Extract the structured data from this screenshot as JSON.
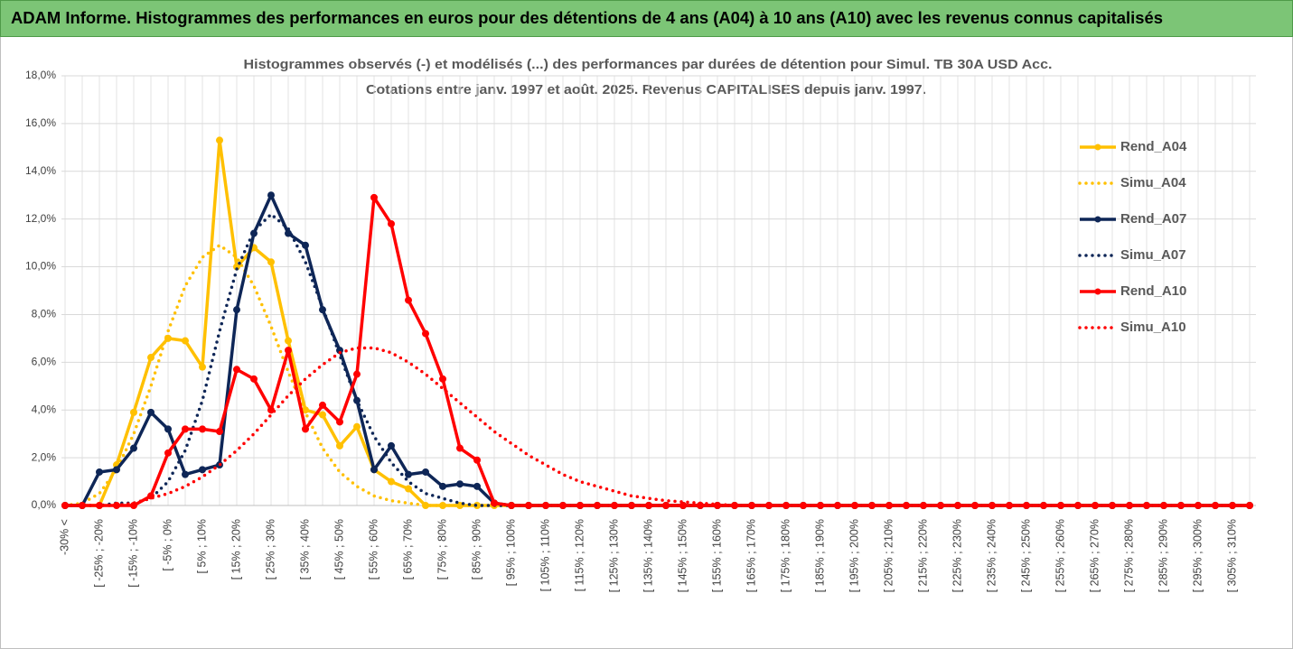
{
  "chart_data": {
    "type": "line",
    "title": "ADAM Informe. Histogrammes des performances en euros pour des détentions de 4 ans (A04) à 10 ans (A10) avec les revenus connus capitalisés",
    "subtitle": [
      "Histogrammes observés (-) et modélisés (...) des performances par durées de détention pour Simul. TB 30A USD Acc.",
      "Cotations entre janv. 1997 et août. 2025. Revenus CAPITALISES depuis janv. 1997."
    ],
    "categories": [
      "-30% <",
      null,
      "[ -25% ; -20%",
      null,
      "[ -15% ; -10%",
      null,
      "[ -5% ; 0%",
      null,
      "[ 5% ; 10%",
      null,
      "[ 15% ; 20%",
      null,
      "[ 25% ; 30%",
      null,
      "[ 35% ; 40%",
      null,
      "[ 45% ; 50%",
      null,
      "[ 55% ; 60%",
      null,
      "[ 65% ; 70%",
      null,
      "[ 75% ; 80%",
      null,
      "[ 85% ; 90%",
      null,
      "[ 95% ; 100%",
      null,
      "[ 105% ; 110%",
      null,
      "[ 115% ; 120%",
      null,
      "[ 125% ; 130%",
      null,
      "[ 135% ; 140%",
      null,
      "[ 145% ; 150%",
      null,
      "[ 155% ; 160%",
      null,
      "[ 165% ; 170%",
      null,
      "[ 175% ; 180%",
      null,
      "[ 185% ; 190%",
      null,
      "[ 195% ; 200%",
      null,
      "[ 205% ; 210%",
      null,
      "[ 215% ; 220%",
      null,
      "[ 225% ; 230%",
      null,
      "[ 235% ; 240%",
      null,
      "[ 245% ; 250%",
      null,
      "[ 255% ; 260%",
      null,
      "[ 265% ; 270%",
      null,
      "[ 275% ; 280%",
      null,
      "[ 285% ; 290%",
      null,
      "[ 295% ; 300%",
      null,
      "[ 305% ; 310%",
      null
    ],
    "series": [
      {
        "name": "Rend_A04",
        "color": "#ffc000",
        "dash": "solid",
        "markers": true,
        "values": [
          0,
          0,
          0,
          1.7,
          3.9,
          6.2,
          7.0,
          6.9,
          5.8,
          15.3,
          10.0,
          10.8,
          10.2,
          6.9,
          4.0,
          3.8,
          2.5,
          3.3,
          1.5,
          1.0,
          0.7,
          0,
          0,
          0,
          0,
          0,
          0,
          0,
          0,
          0,
          0,
          0,
          0,
          0,
          0,
          0,
          0,
          0,
          0,
          0,
          0,
          0,
          0,
          0,
          0,
          0,
          0,
          0,
          0,
          0,
          0,
          0,
          0,
          0,
          0,
          0,
          0,
          0,
          0,
          0,
          0,
          0,
          0,
          0,
          0,
          0,
          0,
          0,
          0,
          0
        ]
      },
      {
        "name": "Simu_A04",
        "color": "#ffc000",
        "dash": "dotted",
        "markers": false,
        "values": [
          0,
          0.1,
          0.5,
          1.5,
          3.0,
          5.0,
          7.3,
          9.2,
          10.4,
          10.9,
          10.4,
          9.2,
          7.5,
          5.6,
          3.9,
          2.4,
          1.4,
          0.8,
          0.4,
          0.2,
          0.1,
          0,
          0,
          0,
          0,
          0,
          0,
          0,
          0,
          0,
          0,
          0,
          0,
          0,
          0,
          0,
          0,
          0,
          0,
          0,
          0,
          0,
          0,
          0,
          0,
          0,
          0,
          0,
          0,
          0,
          0,
          0,
          0,
          0,
          0,
          0,
          0,
          0,
          0,
          0,
          0,
          0,
          0,
          0,
          0,
          0,
          0,
          0,
          0,
          0
        ]
      },
      {
        "name": "Rend_A07",
        "color": "#0e2657",
        "dash": "solid",
        "markers": true,
        "values": [
          0,
          0,
          1.4,
          1.5,
          2.4,
          3.9,
          3.2,
          1.3,
          1.5,
          1.7,
          8.2,
          11.4,
          13.0,
          11.4,
          10.9,
          8.2,
          6.5,
          4.4,
          1.5,
          2.5,
          1.3,
          1.4,
          0.8,
          0.9,
          0.8,
          0.1,
          0,
          0,
          0,
          0,
          0,
          0,
          0,
          0,
          0,
          0,
          0,
          0,
          0,
          0,
          0,
          0,
          0,
          0,
          0,
          0,
          0,
          0,
          0,
          0,
          0,
          0,
          0,
          0,
          0,
          0,
          0,
          0,
          0,
          0,
          0,
          0,
          0,
          0,
          0,
          0,
          0,
          0,
          0,
          0
        ]
      },
      {
        "name": "Simu_A07",
        "color": "#0e2657",
        "dash": "dotted",
        "markers": false,
        "values": [
          0,
          0,
          0,
          0.1,
          0.1,
          0.3,
          1.0,
          2.3,
          4.4,
          7.3,
          9.9,
          11.5,
          12.2,
          11.6,
          10.2,
          8.3,
          6.3,
          4.4,
          2.9,
          1.8,
          1.0,
          0.5,
          0.3,
          0.1,
          0,
          0,
          0,
          0,
          0,
          0,
          0,
          0,
          0,
          0,
          0,
          0,
          0,
          0,
          0,
          0,
          0,
          0,
          0,
          0,
          0,
          0,
          0,
          0,
          0,
          0,
          0,
          0,
          0,
          0,
          0,
          0,
          0,
          0,
          0,
          0,
          0,
          0,
          0,
          0,
          0,
          0,
          0,
          0,
          0,
          0
        ]
      },
      {
        "name": "Rend_A10",
        "color": "#ff0000",
        "dash": "solid",
        "markers": true,
        "values": [
          0,
          0,
          0,
          0,
          0,
          0.4,
          2.2,
          3.2,
          3.2,
          3.1,
          5.7,
          5.3,
          4.0,
          6.5,
          3.2,
          4.2,
          3.5,
          5.5,
          12.9,
          11.8,
          8.6,
          7.2,
          5.3,
          2.4,
          1.9,
          0.1,
          0,
          0,
          0,
          0,
          0,
          0,
          0,
          0,
          0,
          0,
          0,
          0,
          0,
          0,
          0,
          0,
          0,
          0,
          0,
          0,
          0,
          0,
          0,
          0,
          0,
          0,
          0,
          0,
          0,
          0,
          0,
          0,
          0,
          0,
          0,
          0,
          0,
          0,
          0,
          0,
          0,
          0,
          0,
          0
        ]
      },
      {
        "name": "Simu_A10",
        "color": "#ff0000",
        "dash": "dotted",
        "markers": false,
        "values": [
          0,
          0,
          0,
          0,
          0.1,
          0.3,
          0.5,
          0.8,
          1.2,
          1.7,
          2.3,
          3.0,
          3.8,
          4.6,
          5.3,
          5.9,
          6.4,
          6.6,
          6.6,
          6.4,
          6.0,
          5.5,
          4.9,
          4.3,
          3.7,
          3.1,
          2.6,
          2.1,
          1.7,
          1.3,
          1.0,
          0.8,
          0.6,
          0.4,
          0.3,
          0.2,
          0.15,
          0.1,
          0.05,
          0,
          0,
          0,
          0,
          0,
          0,
          0,
          0,
          0,
          0,
          0,
          0,
          0,
          0,
          0,
          0,
          0,
          0,
          0,
          0,
          0,
          0,
          0,
          0,
          0,
          0,
          0,
          0,
          0,
          0,
          0
        ]
      }
    ],
    "ylim": [
      0,
      18
    ],
    "yticks": [
      {
        "value": 0,
        "label": "0,0%"
      },
      {
        "value": 2,
        "label": "2,0%"
      },
      {
        "value": 4,
        "label": "4,0%"
      },
      {
        "value": 6,
        "label": "6,0%"
      },
      {
        "value": 8,
        "label": "8,0%"
      },
      {
        "value": 10,
        "label": "10,0%"
      },
      {
        "value": 12,
        "label": "12,0%"
      },
      {
        "value": 14,
        "label": "14,0%"
      },
      {
        "value": 16,
        "label": "16,0%"
      },
      {
        "value": 18,
        "label": "18,0%"
      }
    ],
    "grid": true,
    "legend": "right"
  }
}
